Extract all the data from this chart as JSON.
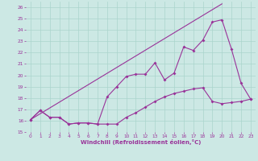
{
  "xlabel": "Windchill (Refroidissement éolien,°C)",
  "bg_color": "#cce8e4",
  "grid_color": "#aad4cc",
  "line_color": "#993399",
  "xlim": [
    -0.5,
    23.5
  ],
  "ylim": [
    15,
    26.5
  ],
  "xticks": [
    0,
    1,
    2,
    3,
    4,
    5,
    6,
    7,
    8,
    9,
    10,
    11,
    12,
    13,
    14,
    15,
    16,
    17,
    18,
    19,
    20,
    21,
    22,
    23
  ],
  "yticks": [
    15,
    16,
    17,
    18,
    19,
    20,
    21,
    22,
    23,
    24,
    25,
    26
  ],
  "line1_x": [
    0,
    1,
    2,
    3,
    4,
    5,
    6,
    7,
    8,
    9,
    10,
    11,
    12,
    13,
    14,
    15,
    16,
    17,
    18,
    19,
    20,
    21,
    22,
    23
  ],
  "line1_y": [
    16.1,
    16.9,
    16.3,
    16.3,
    15.7,
    15.8,
    15.8,
    15.7,
    15.7,
    15.7,
    16.3,
    16.7,
    17.2,
    17.7,
    18.1,
    18.4,
    18.6,
    18.8,
    18.9,
    17.7,
    17.5,
    17.6,
    17.7,
    17.9
  ],
  "line2_x": [
    0,
    1,
    2,
    3,
    4,
    5,
    6,
    7,
    8,
    9,
    10,
    11,
    12,
    13,
    14,
    15,
    16,
    17,
    18,
    19,
    20,
    21,
    22,
    23
  ],
  "line2_y": [
    16.1,
    16.9,
    16.3,
    16.3,
    15.7,
    15.8,
    15.8,
    15.7,
    18.1,
    19.0,
    19.9,
    20.1,
    20.1,
    21.1,
    19.6,
    20.2,
    22.5,
    22.2,
    23.1,
    24.7,
    24.9,
    22.3,
    19.3,
    17.9
  ],
  "line3_x": [
    0,
    20
  ],
  "line3_y": [
    16.1,
    26.3
  ]
}
